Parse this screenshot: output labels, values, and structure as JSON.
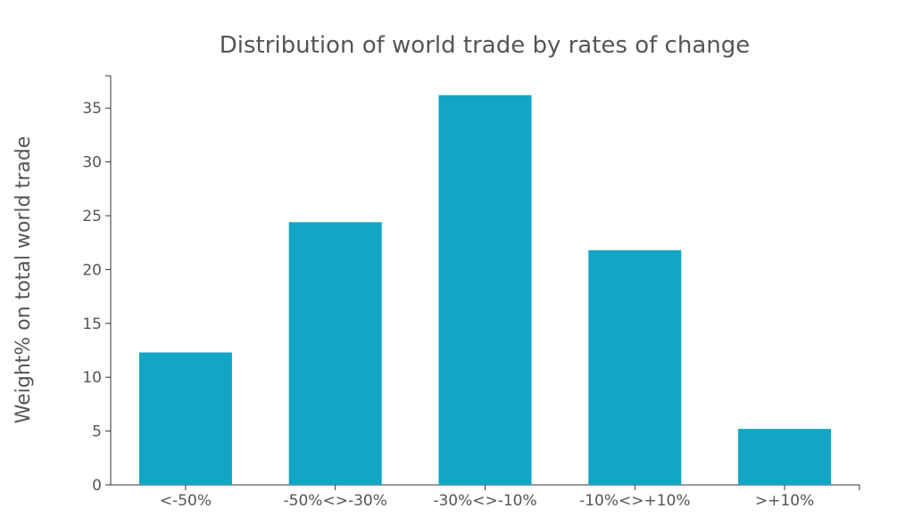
{
  "chart_data": {
    "type": "bar",
    "title": "Distribution of world trade by rates of change",
    "xlabel": "",
    "ylabel": "Weight% on total world trade",
    "categories": [
      "<-50%",
      "-50%<>-30%",
      "-30%<>-10%",
      "-10%<>+10%",
      ">+10%"
    ],
    "values": [
      12.3,
      24.4,
      36.2,
      21.8,
      5.2
    ],
    "ylim": [
      0,
      38
    ],
    "yticks": [
      0,
      5,
      10,
      15,
      20,
      25,
      30,
      35
    ],
    "grid": false,
    "legend": "none"
  },
  "colors": {
    "bar": "#12a5c6",
    "text": "#555555",
    "axis": "#333333"
  }
}
